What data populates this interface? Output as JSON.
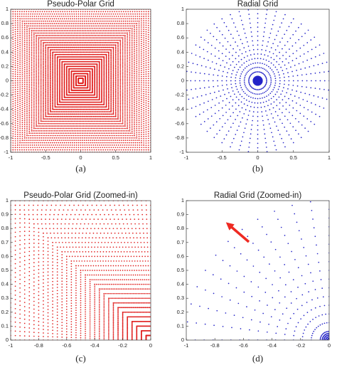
{
  "chart_data": [
    {
      "type": "scatter",
      "title": "Pseudo-Polar Grid",
      "caption": "(a)",
      "color": "#e0201f",
      "xlim": [
        -1,
        1
      ],
      "ylim": [
        -1,
        1
      ],
      "xticks": [
        -1,
        -0.5,
        0,
        0.5,
        1
      ],
      "yticks": [
        -1,
        -0.8,
        -0.6,
        -0.4,
        -0.2,
        0,
        0.2,
        0.4,
        0.6,
        0.8,
        1
      ]
    },
    {
      "type": "scatter",
      "title": "Radial Grid",
      "caption": "(b)",
      "color": "#2424c8",
      "xlim": [
        -1,
        1
      ],
      "ylim": [
        -1,
        1
      ],
      "xticks": [
        -1,
        -0.5,
        0,
        0.5,
        1
      ],
      "yticks": [
        -1,
        -0.8,
        -0.6,
        -0.4,
        -0.2,
        0,
        0.2,
        0.4,
        0.6,
        0.8,
        1
      ]
    },
    {
      "type": "scatter",
      "title": "Pseudo-Polar Grid (Zoomed-in)",
      "caption": "(c)",
      "color": "#e0201f",
      "xlim": [
        -1,
        0
      ],
      "ylim": [
        0,
        1
      ],
      "xticks": [
        -1,
        -0.8,
        -0.6,
        -0.4,
        -0.2,
        0
      ],
      "yticks": [
        0,
        0.1,
        0.2,
        0.3,
        0.4,
        0.5,
        0.6,
        0.7,
        0.8,
        0.9,
        1
      ]
    },
    {
      "type": "scatter",
      "title": "Radial Grid (Zoomed-in)",
      "caption": "(d)",
      "color": "#2424c8",
      "xlim": [
        -1,
        0
      ],
      "ylim": [
        0,
        1
      ],
      "xticks": [
        -1,
        -0.8,
        -0.6,
        -0.4,
        -0.2,
        0
      ],
      "yticks": [
        0,
        0.1,
        0.2,
        0.3,
        0.4,
        0.5,
        0.6,
        0.7,
        0.8,
        0.9,
        1
      ]
    }
  ]
}
